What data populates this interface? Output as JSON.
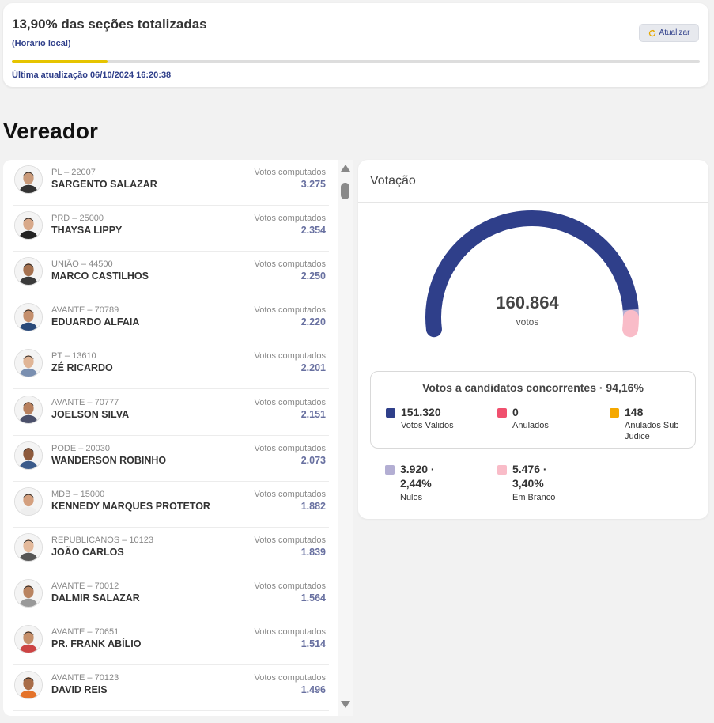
{
  "header": {
    "title": "13,90% das seções totalizadas",
    "subtitle": "(Horário local)",
    "progress_fraction": 0.139,
    "last_update": "Última atualização 06/10/2024 16:20:38",
    "refresh_label": "Atualizar"
  },
  "section_title": "Vereador",
  "candidates": [
    {
      "party": "PL – 22007",
      "name": "SARGENTO SALAZAR",
      "votes_label": "Votos computados",
      "votes": "3.275"
    },
    {
      "party": "PRD – 25000",
      "name": "THAYSA LIPPY",
      "votes_label": "Votos computados",
      "votes": "2.354"
    },
    {
      "party": "UNIÃO – 44500",
      "name": "MARCO CASTILHOS",
      "votes_label": "Votos computados",
      "votes": "2.250"
    },
    {
      "party": "AVANTE – 70789",
      "name": "EDUARDO ALFAIA",
      "votes_label": "Votos computados",
      "votes": "2.220"
    },
    {
      "party": "PT – 13610",
      "name": "ZÉ RICARDO",
      "votes_label": "Votos computados",
      "votes": "2.201"
    },
    {
      "party": "AVANTE – 70777",
      "name": "JOELSON SILVA",
      "votes_label": "Votos computados",
      "votes": "2.151"
    },
    {
      "party": "PODE – 20030",
      "name": "WANDERSON ROBINHO",
      "votes_label": "Votos computados",
      "votes": "2.073"
    },
    {
      "party": "MDB – 15000",
      "name": "KENNEDY MARQUES PROTETOR",
      "votes_label": "Votos computados",
      "votes": "1.882"
    },
    {
      "party": "REPUBLICANOS – 10123",
      "name": "JOÃO CARLOS",
      "votes_label": "Votos computados",
      "votes": "1.839"
    },
    {
      "party": "AVANTE – 70012",
      "name": "DALMIR SALAZAR",
      "votes_label": "Votos computados",
      "votes": "1.564"
    },
    {
      "party": "AVANTE – 70651",
      "name": "PR. FRANK ABÍLIO",
      "votes_label": "Votos computados",
      "votes": "1.514"
    },
    {
      "party": "AVANTE – 70123",
      "name": "DAVID REIS",
      "votes_label": "Votos computados",
      "votes": "1.496"
    }
  ],
  "votacao": {
    "title": "Votação",
    "total": "160.864",
    "unit": "votos",
    "gauge_fractions": {
      "validos": 0.9407,
      "nulos": 0.0244,
      "branco": 0.034
    },
    "summary_title": "Votos a candidatos concorrentes · 94,16%",
    "stats": [
      {
        "value": "151.320",
        "label": "Votos Válidos",
        "color": "#2f3f8a"
      },
      {
        "value": "0",
        "label": "Anulados",
        "color": "#f0506e"
      },
      {
        "value": "148",
        "label": "Anulados Sub Judice",
        "color": "#f5a800"
      },
      {
        "value": "3.920 · 2,44%",
        "value_line1": "3.920 ·",
        "value_line2": "2,44%",
        "label": "Nulos",
        "color": "#b3aed3"
      },
      {
        "value": "5.476 · 3,40%",
        "value_line1": "5.476 ·",
        "value_line2": "3,40%",
        "label": "Em Branco",
        "color": "#f9bcc8"
      }
    ]
  }
}
